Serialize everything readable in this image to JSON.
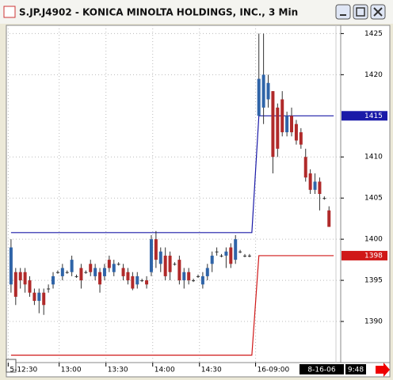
{
  "window": {
    "title": "S.JP.J4902 - KONICA MINOLTA HOLDINGS, INC., 3 Min"
  },
  "status": {
    "date": "8-16-06",
    "time": "9:48"
  },
  "chart_data": {
    "type": "candlestick",
    "up_color": "#2f64a8",
    "down_color": "#b02a2a",
    "xlim": [
      -1,
      70.5
    ],
    "ylim": [
      1385,
      1426
    ],
    "yticks": [
      1390,
      1395,
      1400,
      1405,
      1410,
      1420,
      1425
    ],
    "xticks": [
      {
        "value": -0.6,
        "label": "5-12:30"
      },
      {
        "value": 10.3,
        "label": "13:00"
      },
      {
        "value": 20.3,
        "label": "13:30"
      },
      {
        "value": 30.3,
        "label": "14:00"
      },
      {
        "value": 40.3,
        "label": "14:30"
      },
      {
        "value": 52.3,
        "label": "16-09:00"
      }
    ],
    "grid": true,
    "x": [
      0,
      1,
      2,
      3,
      4,
      5,
      6,
      7,
      8,
      9,
      10,
      11,
      12,
      13,
      14,
      15,
      16,
      17,
      18,
      19,
      20,
      21,
      22,
      23,
      24,
      25,
      26,
      27,
      28,
      29,
      30,
      31,
      32,
      33,
      34,
      35,
      36,
      37,
      38,
      39,
      40,
      41,
      42,
      43,
      44,
      45,
      46,
      47,
      48,
      49,
      50,
      51,
      53,
      54,
      55,
      56,
      57,
      58,
      59,
      60,
      61,
      62,
      63,
      64,
      65,
      66,
      67,
      68
    ],
    "open": [
      1394.5,
      1396,
      1396,
      1396,
      1395,
      1393.5,
      1392.5,
      1393.5,
      1394,
      1394.5,
      1396,
      1395.5,
      1396,
      1396,
      1395.5,
      1396.5,
      1396,
      1397,
      1395.5,
      1396,
      1395.5,
      1397.5,
      1396,
      1397,
      1396.5,
      1396,
      1395.5,
      1394.5,
      1395,
      1395,
      1396,
      1400,
      1397,
      1398,
      1398,
      1397,
      1397.5,
      1395,
      1396,
      1395,
      1395.5,
      1394.5,
      1395.5,
      1397,
      1398.5,
      1398,
      1398,
      1399,
      1397.5,
      1398.5,
      1398,
      1398,
      1415,
      1416,
      1417,
      1418,
      1416,
      1417,
      1413,
      1415,
      1414,
      1413,
      1410,
      1408,
      1406,
      1407,
      1405,
      1403.5
    ],
    "high": [
      1400,
      1396.5,
      1396.5,
      1396.5,
      1395.5,
      1394,
      1394,
      1394,
      1394.5,
      1396,
      1396.2,
      1397,
      1396.2,
      1398,
      1395.7,
      1397,
      1396.2,
      1397.5,
      1397,
      1396.5,
      1397,
      1398,
      1397.5,
      1397.2,
      1397,
      1396.5,
      1396,
      1396,
      1395.2,
      1395.5,
      1400.5,
      1401,
      1399,
      1399,
      1398.5,
      1397.2,
      1398,
      1396.5,
      1396.5,
      1395.2,
      1395.7,
      1396,
      1397,
      1398.5,
      1399,
      1398.2,
      1399,
      1399.5,
      1400.5,
      1398.7,
      1398.2,
      1398.2,
      1425,
      1425,
      1420,
      1418,
      1416.5,
      1418,
      1415.5,
      1416,
      1414.5,
      1413.5,
      1411,
      1408.5,
      1408,
      1407.5,
      1405.2,
      1404
    ],
    "low": [
      1393.5,
      1392,
      1394,
      1393.5,
      1393,
      1392,
      1391,
      1390.8,
      1393.5,
      1394,
      1395.8,
      1395,
      1395.8,
      1395.5,
      1395.3,
      1394,
      1395.8,
      1395.5,
      1395,
      1393.5,
      1395,
      1396,
      1395.5,
      1396.8,
      1395,
      1394.5,
      1393.8,
      1394,
      1394.8,
      1394,
      1395.5,
      1396.5,
      1396,
      1395,
      1395,
      1396.8,
      1394.5,
      1394,
      1394.5,
      1394.8,
      1395.3,
      1394,
      1395,
      1396,
      1398,
      1397.8,
      1396.5,
      1396.5,
      1397,
      1398.3,
      1397.8,
      1397.8,
      1415,
      1414,
      1416,
      1408,
      1410,
      1412.5,
      1412.5,
      1412.5,
      1411.5,
      1411,
      1407,
      1405.5,
      1405.5,
      1403.5,
      1404.8,
      1401.5
    ],
    "close": [
      1399,
      1393,
      1395,
      1394.5,
      1393.5,
      1392.5,
      1393.5,
      1392,
      1394,
      1395.5,
      1396,
      1396.5,
      1396,
      1397.5,
      1395.5,
      1395,
      1396,
      1396,
      1396.5,
      1394.5,
      1396.5,
      1396.5,
      1397,
      1397,
      1395.5,
      1395,
      1394,
      1395.5,
      1395,
      1394.5,
      1400,
      1397.5,
      1398.5,
      1395.5,
      1396,
      1397,
      1395,
      1396,
      1395,
      1395,
      1395.5,
      1395.5,
      1396.5,
      1398,
      1398.5,
      1398,
      1398.5,
      1397,
      1400,
      1398.5,
      1398,
      1398,
      1419.5,
      1420,
      1419,
      1410,
      1411,
      1413,
      1415,
      1413,
      1412,
      1411.5,
      1407.5,
      1406,
      1407,
      1405.5,
      1405,
      1401.5
    ],
    "lines": [
      {
        "color": "#1a1aa8",
        "x": [
          0,
          51.5,
          53,
          69
        ],
        "values": [
          1400.8,
          1400.8,
          1415,
          1415
        ]
      },
      {
        "color": "#d01818",
        "x": [
          0,
          51.5,
          53,
          69
        ],
        "values": [
          1385.9,
          1385.9,
          1398,
          1398
        ]
      }
    ]
  }
}
